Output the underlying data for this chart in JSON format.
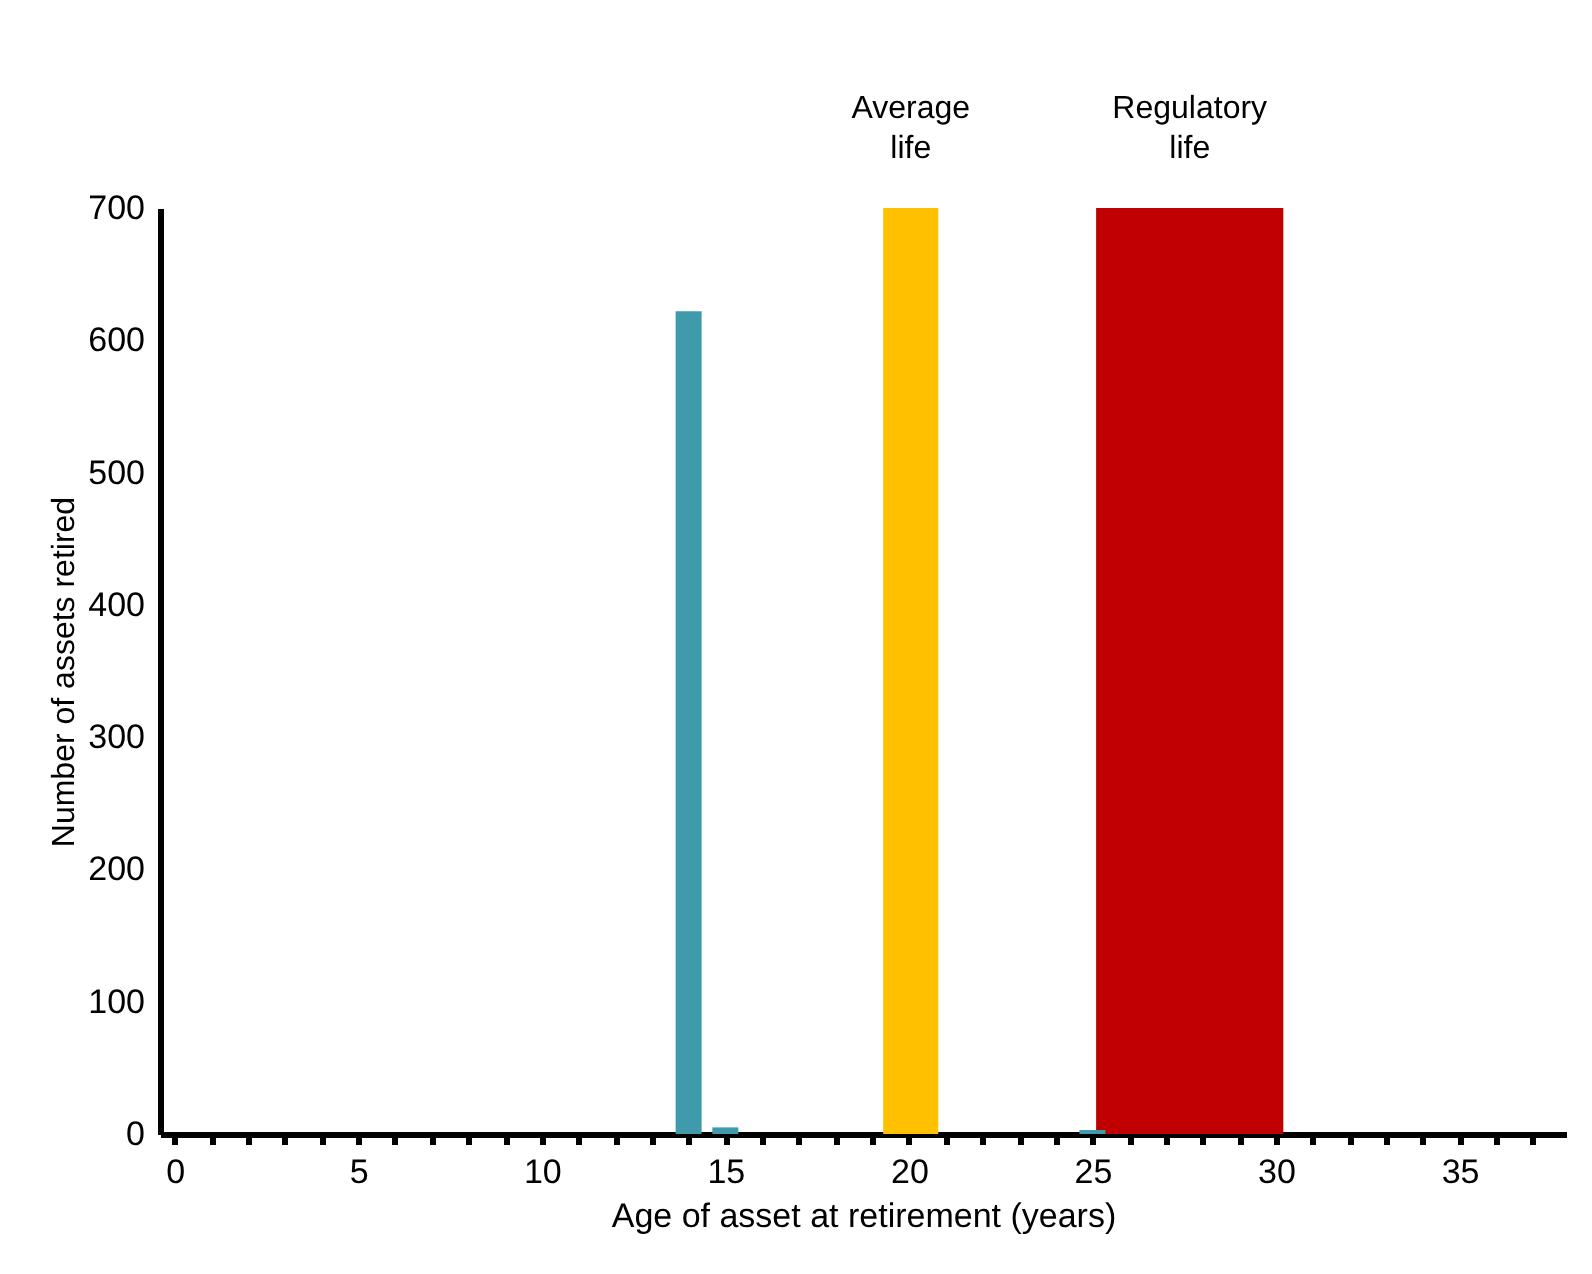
{
  "chart_data": {
    "type": "bar",
    "xlabel": "Age of asset at retirement (years)",
    "ylabel": "Number of assets retired",
    "x": [
      14,
      15,
      25
    ],
    "series": [
      {
        "color": "#3f9aac",
        "values": [
          622,
          5,
          3
        ]
      }
    ],
    "xlim": [
      -0.4,
      37.9
    ],
    "xticks": [
      0,
      {
        "value": 1,
        "label": null
      },
      {
        "value": 2,
        "label": null
      },
      {
        "value": 3,
        "label": null
      },
      {
        "value": 4,
        "label": null
      },
      5,
      {
        "value": 6,
        "label": null
      },
      {
        "value": 7,
        "label": null
      },
      {
        "value": 8,
        "label": null
      },
      {
        "value": 9,
        "label": null
      },
      10,
      {
        "value": 11,
        "label": null
      },
      {
        "value": 12,
        "label": null
      },
      {
        "value": 13,
        "label": null
      },
      {
        "value": 14,
        "label": null
      },
      15,
      {
        "value": 16,
        "label": null
      },
      {
        "value": 17,
        "label": null
      },
      {
        "value": 18,
        "label": null
      },
      {
        "value": 19,
        "label": null
      },
      20,
      {
        "value": 21,
        "label": null
      },
      {
        "value": 22,
        "label": null
      },
      {
        "value": 23,
        "label": null
      },
      {
        "value": 24,
        "label": null
      },
      25,
      {
        "value": 26,
        "label": null
      },
      {
        "value": 27,
        "label": null
      },
      {
        "value": 28,
        "label": null
      },
      {
        "value": 29,
        "label": null
      },
      30,
      {
        "value": 31,
        "label": null
      },
      {
        "value": 32,
        "label": null
      },
      {
        "value": 33,
        "label": null
      },
      {
        "value": 34,
        "label": null
      },
      35,
      {
        "value": 36,
        "label": null
      },
      {
        "value": 37,
        "label": null
      }
    ],
    "ylim": [
      0,
      700
    ],
    "yticks": [
      0,
      100,
      200,
      300,
      400,
      500,
      600,
      700
    ],
    "bands": [
      {
        "axis": "x",
        "from": 19.3,
        "to": 20.8,
        "label": "Average life",
        "color": "#ffc000"
      },
      {
        "axis": "x",
        "from": 25.1,
        "to": 30.2,
        "label": "Regulatory life",
        "color": "#c00000"
      }
    ],
    "grid": false
  }
}
